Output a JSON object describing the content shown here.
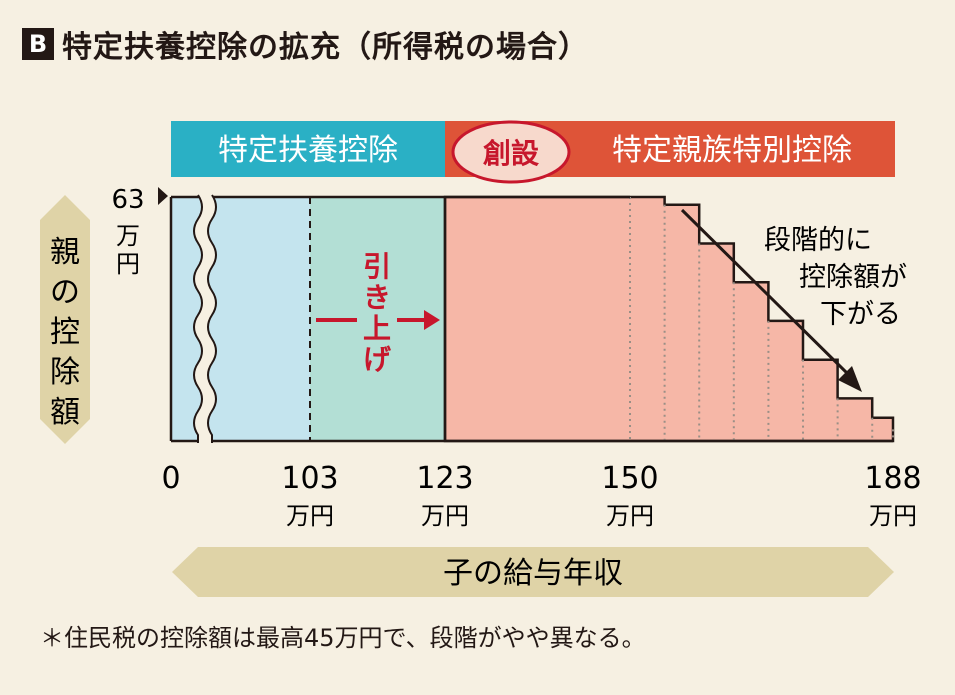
{
  "title": {
    "badge": "B",
    "text": "特定扶養控除の拡充（所得税の場合）"
  },
  "colors": {
    "blue_header": "#2ab0c5",
    "red_header": "#de5438",
    "light_blue": "#c4e4ee",
    "teal": "#b3dfd5",
    "salmon": "#f6b7a7",
    "tan": "#dfd3a7",
    "arrow_red": "#c7172c",
    "oval_fill": "#f7d9cc"
  },
  "headers": {
    "left_label": "特定扶養控除",
    "new_badge": "創設",
    "right_label": "特定親族特別控除"
  },
  "chart_data": {
    "type": "area",
    "title": "",
    "xlabel": "子の給与年収",
    "ylabel": "親の控除額",
    "y_max_label": {
      "value": "63",
      "unit": "万円"
    },
    "x_ticks": [
      {
        "value": 0,
        "label": "0",
        "unit": ""
      },
      {
        "value": 103,
        "label": "103",
        "unit": "万円"
      },
      {
        "value": 123,
        "label": "123",
        "unit": "万円"
      },
      {
        "value": 150,
        "label": "150",
        "unit": "万円"
      },
      {
        "value": 188,
        "label": "188",
        "unit": "万円"
      }
    ],
    "ylim": [
      0,
      63
    ],
    "series": [
      {
        "x": [
          150,
          155,
          160,
          165,
          170,
          175,
          180,
          185,
          188
        ],
        "y": [
          63,
          61,
          51,
          41,
          31,
          21,
          11,
          6,
          3
        ]
      }
    ],
    "annotations": {
      "raise": "引き上げ",
      "stepdown": [
        "段階的に",
        "控除額が",
        "下がる"
      ]
    }
  },
  "footnote": "＊住民税の控除額は最高45万円で、段階がやや異なる。"
}
